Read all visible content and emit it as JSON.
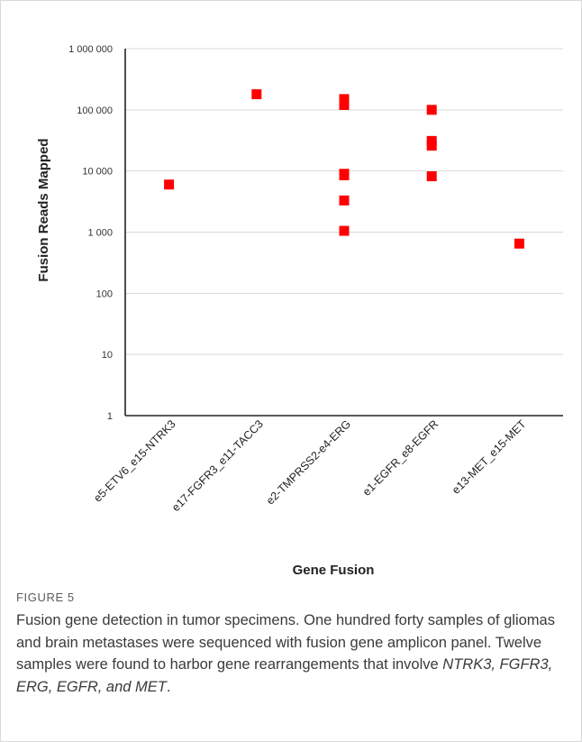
{
  "chart_data": {
    "type": "scatter",
    "ylabel": "Fusion Reads Mapped",
    "xlabel": "Gene Fusion",
    "yscale": "log",
    "ylim": [
      1,
      1000000
    ],
    "yticks": [
      {
        "value": 1000000,
        "label": "1 000 000"
      },
      {
        "value": 100000,
        "label": "100 000"
      },
      {
        "value": 10000,
        "label": "10 000"
      },
      {
        "value": 1000,
        "label": "1 000"
      },
      {
        "value": 100,
        "label": "100"
      },
      {
        "value": 10,
        "label": "10"
      },
      {
        "value": 1,
        "label": "1"
      }
    ],
    "categories": [
      "e5-ETV6_e15-NTRK3",
      "e17-FGFR3_e11-TACC3",
      "e2-TMPRSS2-e4-ERG",
      "e1-EGFR_e8-EGFR",
      "e13-MET_e15-MET"
    ],
    "points": [
      {
        "category": "e5-ETV6_e15-NTRK3",
        "value": 6000
      },
      {
        "category": "e17-FGFR3_e11-TACC3",
        "value": 180000
      },
      {
        "category": "e2-TMPRSS2-e4-ERG",
        "value": 150000
      },
      {
        "category": "e2-TMPRSS2-e4-ERG",
        "value": 120000
      },
      {
        "category": "e2-TMPRSS2-e4-ERG",
        "value": 9000
      },
      {
        "category": "e2-TMPRSS2-e4-ERG",
        "value": 8500
      },
      {
        "category": "e2-TMPRSS2-e4-ERG",
        "value": 3300
      },
      {
        "category": "e2-TMPRSS2-e4-ERG",
        "value": 1050
      },
      {
        "category": "e1-EGFR_e8-EGFR",
        "value": 100000
      },
      {
        "category": "e1-EGFR_e8-EGFR",
        "value": 31000
      },
      {
        "category": "e1-EGFR_e8-EGFR",
        "value": 26000
      },
      {
        "category": "e1-EGFR_e8-EGFR",
        "value": 8200
      },
      {
        "category": "e13-MET_e15-MET",
        "value": 650
      }
    ],
    "marker_color": "#ff0000",
    "gridlines": true,
    "grid_color": "#d9d9d9"
  },
  "caption": {
    "label": "FIGURE 5",
    "text_before": "Fusion gene detection in tumor specimens. One hundred forty samples of gliomas and brain metastases were sequenced with fusion gene amplicon panel. Twelve samples were found to harbor gene rearrangements that involve ",
    "genes_italic": "NTRK3, FGFR3, ERG, EGFR, and MET",
    "text_after": "."
  }
}
